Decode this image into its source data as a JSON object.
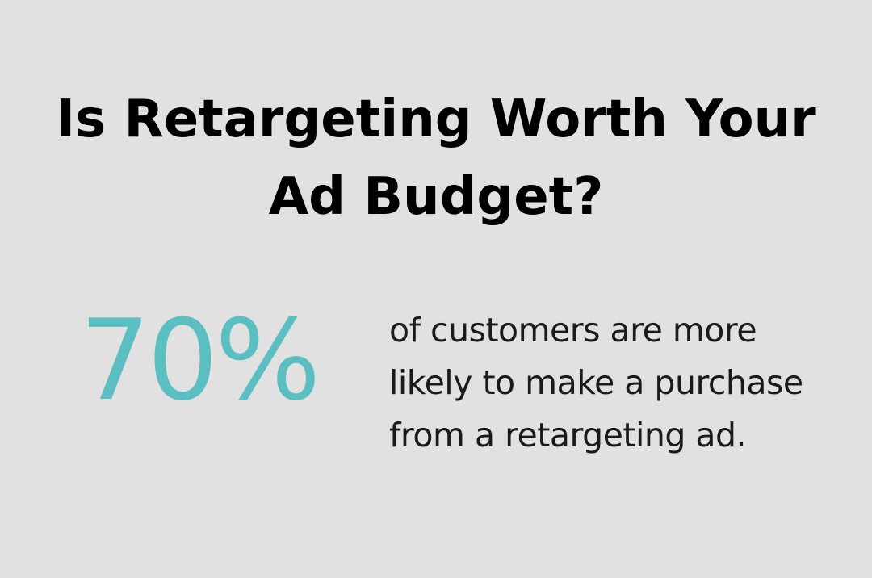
{
  "card": {
    "title": "Is Retargeting Worth Your Ad Budget?",
    "stat": {
      "value": "70%",
      "description": "of customers are more likely to make a purchase from a retargeting ad."
    }
  },
  "colors": {
    "background": "#e0e1e0",
    "accent": "#5bbfc2",
    "text": "#000000"
  }
}
